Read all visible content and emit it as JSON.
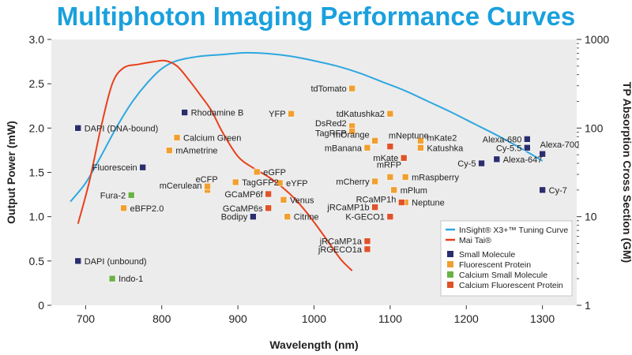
{
  "page_title": "Multiphoton Imaging Performance Curves",
  "chart_data": {
    "type": "scatter",
    "title": "Multiphoton Imaging Performance Curves",
    "xlabel": "Wavelength (nm)",
    "ylabel": "Output Power (mW)",
    "y2label": "TP Absorption Cross Section (GM)",
    "xlim": [
      655,
      1345
    ],
    "ylim": [
      0,
      3.0
    ],
    "y2lim": [
      1,
      1000
    ],
    "y2scale": "log",
    "xticks": [
      "700",
      "800",
      "900",
      "1000",
      "1100",
      "1200",
      "1300"
    ],
    "yticks": [
      "0",
      "0.5",
      "1.0",
      "1.5",
      "2.0",
      "2.5",
      "3.0"
    ],
    "y2ticks": [
      "1",
      "10",
      "100",
      "1000"
    ],
    "series": [
      {
        "name": "InSight® X3+™ Tuning Curve",
        "kind": "line",
        "color": "#2ea7e0",
        "points": [
          [
            680,
            1.17
          ],
          [
            700,
            1.38
          ],
          [
            720,
            1.68
          ],
          [
            740,
            2.0
          ],
          [
            760,
            2.28
          ],
          [
            780,
            2.5
          ],
          [
            800,
            2.67
          ],
          [
            820,
            2.76
          ],
          [
            850,
            2.81
          ],
          [
            880,
            2.83
          ],
          [
            910,
            2.85
          ],
          [
            940,
            2.84
          ],
          [
            970,
            2.81
          ],
          [
            1000,
            2.76
          ],
          [
            1030,
            2.7
          ],
          [
            1060,
            2.62
          ],
          [
            1090,
            2.52
          ],
          [
            1120,
            2.42
          ],
          [
            1150,
            2.3
          ],
          [
            1180,
            2.18
          ],
          [
            1210,
            2.05
          ],
          [
            1240,
            1.92
          ],
          [
            1270,
            1.78
          ],
          [
            1300,
            1.63
          ]
        ]
      },
      {
        "name": "Mai Tai®",
        "kind": "line",
        "color": "#e8401c",
        "points": [
          [
            690,
            0.92
          ],
          [
            705,
            1.4
          ],
          [
            720,
            2.0
          ],
          [
            735,
            2.5
          ],
          [
            750,
            2.68
          ],
          [
            770,
            2.72
          ],
          [
            790,
            2.75
          ],
          [
            805,
            2.76
          ],
          [
            820,
            2.7
          ],
          [
            835,
            2.55
          ],
          [
            850,
            2.38
          ],
          [
            865,
            2.2
          ],
          [
            880,
            1.95
          ],
          [
            900,
            1.68
          ],
          [
            920,
            1.55
          ],
          [
            940,
            1.45
          ],
          [
            960,
            1.32
          ],
          [
            975,
            1.2
          ],
          [
            990,
            1.05
          ],
          [
            1005,
            0.88
          ],
          [
            1020,
            0.7
          ],
          [
            1035,
            0.52
          ],
          [
            1050,
            0.39
          ]
        ]
      }
    ],
    "points": [
      {
        "label": "DAPI (DNA-bound)",
        "x": 690,
        "gm": 100,
        "cat": "Small Molecule"
      },
      {
        "label": "Fluorescein",
        "x": 775,
        "gm": 36,
        "cat": "Small Molecule"
      },
      {
        "label": "Rhodamine B",
        "x": 830,
        "gm": 150,
        "cat": "Small Molecule"
      },
      {
        "label": "Bodipy",
        "x": 920,
        "gm": 10,
        "cat": "Small Molecule"
      },
      {
        "label": "DAPI (unbound)",
        "x": 690,
        "gm": 3.16,
        "cat": "Small Molecule"
      },
      {
        "label": "Alexa-680",
        "x": 1280,
        "gm": 75,
        "cat": "Small Molecule"
      },
      {
        "label": "Cy-5.5",
        "x": 1280,
        "gm": 60,
        "cat": "Small Molecule"
      },
      {
        "label": "Alexa-700",
        "x": 1300,
        "gm": 51,
        "cat": "Small Molecule"
      },
      {
        "label": "Cy-5",
        "x": 1220,
        "gm": 40,
        "cat": "Small Molecule"
      },
      {
        "label": "Alexa-647",
        "x": 1240,
        "gm": 44.5,
        "cat": "Small Molecule"
      },
      {
        "label": "Cy-7",
        "x": 1300,
        "gm": 20,
        "cat": "Small Molecule"
      },
      {
        "label": "tdTomato",
        "x": 1050,
        "gm": 280,
        "cat": "Fluorescent Protein"
      },
      {
        "label": "YFP",
        "x": 970,
        "gm": 145,
        "cat": "Fluorescent Protein"
      },
      {
        "label": "tdKatushka2",
        "x": 1100,
        "gm": 145,
        "cat": "Fluorescent Protein"
      },
      {
        "label": "DsRed2",
        "x": 1050,
        "gm": 105,
        "cat": "Fluorescent Protein"
      },
      {
        "label": "TagRFP",
        "x": 1050,
        "gm": 92,
        "cat": "Fluorescent Protein"
      },
      {
        "label": "mOrange",
        "x": 1080,
        "gm": 72,
        "cat": "Fluorescent Protein"
      },
      {
        "label": "mBanana",
        "x": 1070,
        "gm": 60,
        "cat": "Fluorescent Protein"
      },
      {
        "label": "mKate2",
        "x": 1140,
        "gm": 72,
        "cat": "Fluorescent Protein"
      },
      {
        "label": "Katushka",
        "x": 1140,
        "gm": 60,
        "cat": "Fluorescent Protein"
      },
      {
        "label": "Calcium Green",
        "x": 820,
        "gm": 78,
        "cat": "Fluorescent Protein"
      },
      {
        "label": "mAmetrine",
        "x": 810,
        "gm": 56,
        "cat": "Fluorescent Protein"
      },
      {
        "label": "eGFP",
        "x": 925,
        "gm": 32,
        "cat": "Fluorescent Protein"
      },
      {
        "label": "eCFP",
        "x": 860,
        "gm": 20,
        "cat": "Fluorescent Protein"
      },
      {
        "label": "mCerulean",
        "x": 860,
        "gm": 22,
        "cat": "Fluorescent Protein"
      },
      {
        "label": "TagGFP2",
        "x": 897,
        "gm": 24.5,
        "cat": "Fluorescent Protein"
      },
      {
        "label": "eYFP",
        "x": 955,
        "gm": 24,
        "cat": "Fluorescent Protein"
      },
      {
        "label": "mRFP",
        "x": 1100,
        "gm": 28,
        "cat": "Fluorescent Protein"
      },
      {
        "label": "mRaspberry",
        "x": 1120,
        "gm": 28,
        "cat": "Fluorescent Protein"
      },
      {
        "label": "mCherry",
        "x": 1080,
        "gm": 25,
        "cat": "Fluorescent Protein"
      },
      {
        "label": "mPlum",
        "x": 1105,
        "gm": 20,
        "cat": "Fluorescent Protein"
      },
      {
        "label": "Neptune",
        "x": 1120,
        "gm": 14.5,
        "cat": "Fluorescent Protein"
      },
      {
        "label": "Venus",
        "x": 960,
        "gm": 15.5,
        "cat": "Fluorescent Protein"
      },
      {
        "label": "Citrine",
        "x": 965,
        "gm": 10,
        "cat": "Fluorescent Protein"
      },
      {
        "label": "eBFP2.0",
        "x": 750,
        "gm": 12.5,
        "cat": "Fluorescent Protein"
      },
      {
        "label": "Fura-2",
        "x": 760,
        "gm": 17.5,
        "cat": "Calcium Small Molecule"
      },
      {
        "label": "Indo-1",
        "x": 735,
        "gm": 2.0,
        "cat": "Calcium Small Molecule"
      },
      {
        "label": "mNeptune",
        "x": 1100,
        "gm": 62,
        "cat": "Calcium Fluorescent Protein"
      },
      {
        "label": "mKate",
        "x": 1118,
        "gm": 46,
        "cat": "Calcium Fluorescent Protein"
      },
      {
        "label": "GCaMP6f",
        "x": 940,
        "gm": 18,
        "cat": "Calcium Fluorescent Protein"
      },
      {
        "label": "GCaMP6s",
        "x": 940,
        "gm": 12.5,
        "cat": "Calcium Fluorescent Protein"
      },
      {
        "label": "RCaMP1h",
        "x": 1115,
        "gm": 14.5,
        "cat": "Calcium Fluorescent Protein"
      },
      {
        "label": "jRCaMP1b",
        "x": 1080,
        "gm": 12.8,
        "cat": "Calcium Fluorescent Protein"
      },
      {
        "label": "K-GECO1",
        "x": 1100,
        "gm": 10,
        "cat": "Calcium Fluorescent Protein"
      },
      {
        "label": "jRCaMP1a",
        "x": 1070,
        "gm": 5.3,
        "cat": "Calcium Fluorescent Protein"
      },
      {
        "label": "jRGECO1a",
        "x": 1070,
        "gm": 4.3,
        "cat": "Calcium Fluorescent Protein"
      }
    ],
    "categories": [
      {
        "name": "Small Molecule",
        "color": "#2b2d6e"
      },
      {
        "name": "Fluorescent Protein",
        "color": "#f0a030"
      },
      {
        "name": "Calcium Small Molecule",
        "color": "#6ab245"
      },
      {
        "name": "Calcium Fluorescent Protein",
        "color": "#e0522a"
      }
    ],
    "legend": {
      "position": "bottom-right",
      "lines": [
        {
          "text": "InSight® X3+™ Tuning Curve",
          "color": "#2ea7e0"
        },
        {
          "text": "Mai Tai®",
          "color": "#e8401c"
        }
      ],
      "markers": [
        "Small Molecule",
        "Fluorescent Protein",
        "Calcium Small Molecule",
        "Calcium Fluorescent Protein"
      ]
    },
    "colors": {
      "plot_bg": "#ececec",
      "title": "#1aa0dd"
    }
  }
}
